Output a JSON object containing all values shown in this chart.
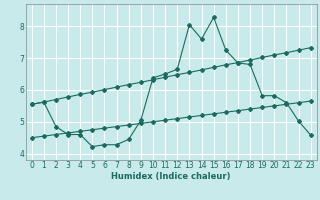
{
  "xlabel": "Humidex (Indice chaleur)",
  "ylabel": "",
  "bg_color": "#c8eaea",
  "grid_color": "#ffffff",
  "line_color": "#1a6b5e",
  "xlim": [
    -0.5,
    23.5
  ],
  "ylim": [
    3.8,
    8.7
  ],
  "x_ticks": [
    0,
    1,
    2,
    3,
    4,
    5,
    6,
    7,
    8,
    9,
    10,
    11,
    12,
    13,
    14,
    15,
    16,
    17,
    18,
    19,
    20,
    21,
    22,
    23
  ],
  "y_ticks": [
    4,
    5,
    6,
    7,
    8
  ],
  "curve1_x": [
    0,
    1,
    2,
    3,
    4,
    5,
    6,
    7,
    8,
    9,
    10,
    11,
    12,
    13,
    14,
    15,
    16,
    17,
    18,
    19,
    20,
    21,
    22,
    23
  ],
  "curve1_y": [
    5.55,
    5.62,
    5.7,
    5.78,
    5.86,
    5.93,
    6.01,
    6.09,
    6.17,
    6.24,
    6.32,
    6.4,
    6.48,
    6.55,
    6.63,
    6.71,
    6.79,
    6.86,
    6.94,
    7.02,
    7.1,
    7.17,
    7.25,
    7.33
  ],
  "curve2_x": [
    0,
    1,
    2,
    3,
    4,
    5,
    6,
    7,
    8,
    9,
    10,
    11,
    12,
    13,
    14,
    15,
    16,
    17,
    18,
    19,
    20,
    21,
    22,
    23
  ],
  "curve2_y": [
    4.5,
    4.55,
    4.6,
    4.65,
    4.7,
    4.75,
    4.8,
    4.85,
    4.9,
    4.95,
    5.0,
    5.05,
    5.1,
    5.15,
    5.2,
    5.25,
    5.3,
    5.35,
    5.4,
    5.45,
    5.5,
    5.55,
    5.6,
    5.65
  ],
  "curve3_x": [
    0,
    1,
    2,
    3,
    4,
    5,
    6,
    7,
    8,
    9,
    10,
    11,
    12,
    13,
    14,
    15,
    16,
    17,
    18,
    19,
    20,
    21,
    22,
    23
  ],
  "curve3_y": [
    5.55,
    5.62,
    4.85,
    4.6,
    4.6,
    4.22,
    4.28,
    4.28,
    4.45,
    5.05,
    6.38,
    6.5,
    6.65,
    8.05,
    7.6,
    8.28,
    7.25,
    6.85,
    6.8,
    5.82,
    5.82,
    5.6,
    5.02,
    4.58
  ]
}
